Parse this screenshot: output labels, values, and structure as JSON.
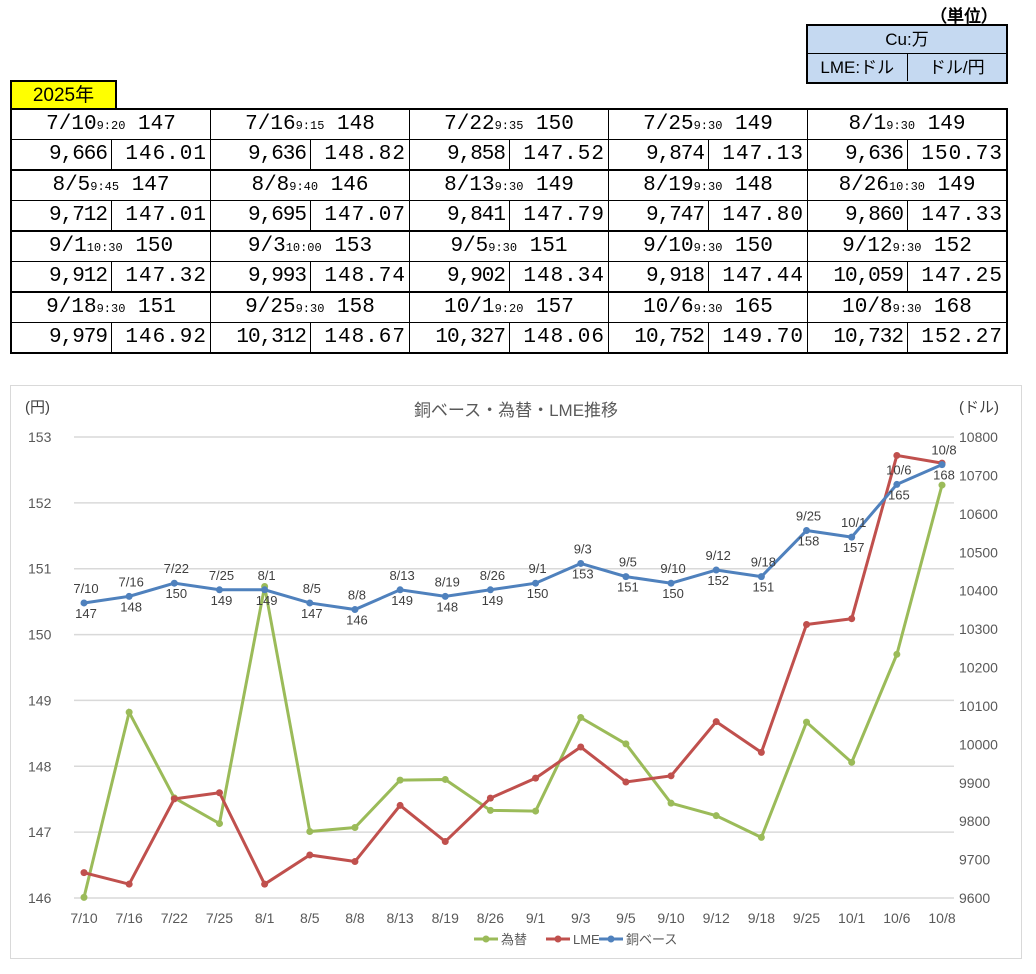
{
  "unit_label": "（単位）",
  "units": {
    "cu": "Cu:万",
    "lme": "LME:ドル",
    "fx": "ドル/円"
  },
  "year": "2025年",
  "rows": [
    {
      "date": "7/10",
      "time": "9:20",
      "copper": "147",
      "lme": "9,666",
      "fx": "146.01"
    },
    {
      "date": "7/16",
      "time": "9:15",
      "copper": "148",
      "lme": "9,636",
      "fx": "148.82"
    },
    {
      "date": "7/22",
      "time": "9:35",
      "copper": "150",
      "lme": "9,858",
      "fx": "147.52"
    },
    {
      "date": "7/25",
      "time": "9:30",
      "copper": "149",
      "lme": "9,874",
      "fx": "147.13"
    },
    {
      "date": "8/1",
      "time": "9:30",
      "copper": "149",
      "lme": "9,636",
      "fx": "150.73"
    },
    {
      "date": "8/5",
      "time": "9:45",
      "copper": "147",
      "lme": "9,712",
      "fx": "147.01"
    },
    {
      "date": "8/8",
      "time": "9:40",
      "copper": "146",
      "lme": "9,695",
      "fx": "147.07"
    },
    {
      "date": "8/13",
      "time": "9:30",
      "copper": "149",
      "lme": "9,841",
      "fx": "147.79"
    },
    {
      "date": "8/19",
      "time": "9:30",
      "copper": "148",
      "lme": "9,747",
      "fx": "147.80"
    },
    {
      "date": "8/26",
      "time": "10:30",
      "copper": "149",
      "lme": "9,860",
      "fx": "147.33"
    },
    {
      "date": "9/1",
      "time": "10:30",
      "copper": "150",
      "lme": "9,912",
      "fx": "147.32"
    },
    {
      "date": "9/3",
      "time": "10:00",
      "copper": "153",
      "lme": "9,993",
      "fx": "148.74"
    },
    {
      "date": "9/5",
      "time": "9:30",
      "copper": "151",
      "lme": "9,902",
      "fx": "148.34"
    },
    {
      "date": "9/10",
      "time": "9:30",
      "copper": "150",
      "lme": "9,918",
      "fx": "147.44"
    },
    {
      "date": "9/12",
      "time": "9:30",
      "copper": "152",
      "lme": "10,059",
      "fx": "147.25"
    },
    {
      "date": "9/18",
      "time": "9:30",
      "copper": "151",
      "lme": "9,979",
      "fx": "146.92"
    },
    {
      "date": "9/25",
      "time": "9:30",
      "copper": "158",
      "lme": "10,312",
      "fx": "148.67"
    },
    {
      "date": "10/1",
      "time": "9:20",
      "copper": "157",
      "lme": "10,327",
      "fx": "148.06"
    },
    {
      "date": "10/6",
      "time": "9:30",
      "copper": "165",
      "lme": "10,752",
      "fx": "149.70"
    },
    {
      "date": "10/8",
      "time": "9:30",
      "copper": "168",
      "lme": "10,732",
      "fx": "152.27"
    }
  ],
  "chart_data": {
    "type": "line",
    "title": "銅ベース・為替・LME推移",
    "ylabel_left": "(円)",
    "ylabel_right": "(ドル)",
    "categories": [
      "7/10",
      "7/16",
      "7/22",
      "7/25",
      "8/1",
      "8/5",
      "8/8",
      "8/13",
      "8/19",
      "8/26",
      "9/1",
      "9/3",
      "9/5",
      "9/10",
      "9/12",
      "9/18",
      "9/25",
      "10/1",
      "10/6",
      "10/8"
    ],
    "ylim_left": [
      146,
      153
    ],
    "yticks_left": [
      "146",
      "147",
      "148",
      "149",
      "150",
      "151",
      "152",
      "153"
    ],
    "ylim_right": [
      9600,
      10800
    ],
    "yticks_right": [
      "9600",
      "9700",
      "9800",
      "9900",
      "10000",
      "10100",
      "10200",
      "10300",
      "10400",
      "10500",
      "10600",
      "10700",
      "10800"
    ],
    "legend_position": "bottom",
    "series": [
      {
        "name": "為替",
        "axis": "left",
        "color": "#9bbb59",
        "values": [
          146.01,
          148.82,
          147.52,
          147.13,
          150.73,
          147.01,
          147.07,
          147.79,
          147.8,
          147.33,
          147.32,
          148.74,
          148.34,
          147.44,
          147.25,
          146.92,
          148.67,
          148.06,
          149.7,
          152.27
        ]
      },
      {
        "name": "LME",
        "axis": "right",
        "color": "#c0504d",
        "values": [
          9666,
          9636,
          9858,
          9874,
          9636,
          9712,
          9695,
          9841,
          9747,
          9860,
          9912,
          9993,
          9902,
          9918,
          10059,
          9979,
          10312,
          10327,
          10752,
          10732
        ]
      },
      {
        "name": "銅ベース",
        "axis": "hidden",
        "color": "#4f81bd",
        "values": [
          147,
          148,
          150,
          149,
          149,
          147,
          146,
          149,
          148,
          149,
          150,
          153,
          151,
          150,
          152,
          151,
          158,
          157,
          165,
          168
        ],
        "labels": [
          "147",
          "148",
          "150",
          "149",
          "149",
          "147",
          "146",
          "149",
          "148",
          "149",
          "150",
          "153",
          "151",
          "150",
          "152",
          "151",
          "158",
          "157",
          "165",
          "168"
        ]
      }
    ]
  }
}
